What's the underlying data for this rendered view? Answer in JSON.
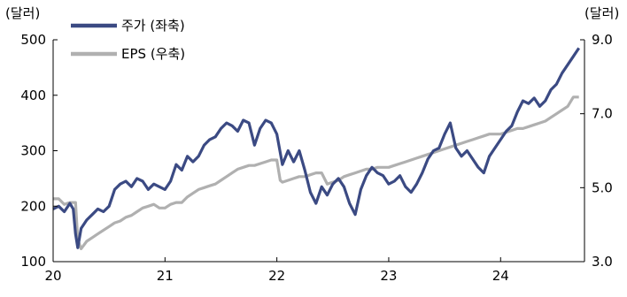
{
  "chart_data": {
    "type": "line",
    "left_unit": "(달러)",
    "right_unit": "(달러)",
    "x_ticks": [
      "20",
      "21",
      "22",
      "23",
      "24"
    ],
    "x_tick_years": [
      2020,
      2021,
      2022,
      2023,
      2024
    ],
    "xlim": [
      2020,
      2024.75
    ],
    "y_left": {
      "ticks": [
        "100",
        "200",
        "300",
        "400",
        "500"
      ],
      "tick_values": [
        100,
        200,
        300,
        400,
        500
      ],
      "lim": [
        100,
        500
      ]
    },
    "y_right": {
      "ticks": [
        "3.0",
        "5.0",
        "7.0",
        "9.0"
      ],
      "tick_values": [
        3.0,
        5.0,
        7.0,
        9.0
      ],
      "lim": [
        3.0,
        9.0
      ]
    },
    "legend_position": "top-left",
    "series": [
      {
        "name": "주가 (좌축)",
        "axis": "left",
        "color": "#3b4a83",
        "x": [
          2020.0,
          2020.05,
          2020.1,
          2020.15,
          2020.18,
          2020.2,
          2020.22,
          2020.25,
          2020.3,
          2020.35,
          2020.4,
          2020.45,
          2020.5,
          2020.55,
          2020.6,
          2020.65,
          2020.7,
          2020.75,
          2020.8,
          2020.85,
          2020.9,
          2020.95,
          2021.0,
          2021.05,
          2021.1,
          2021.15,
          2021.2,
          2021.25,
          2021.3,
          2021.35,
          2021.4,
          2021.45,
          2021.5,
          2021.55,
          2021.6,
          2021.65,
          2021.7,
          2021.75,
          2021.8,
          2021.85,
          2021.9,
          2021.95,
          2022.0,
          2022.05,
          2022.1,
          2022.15,
          2022.2,
          2022.25,
          2022.3,
          2022.35,
          2022.4,
          2022.45,
          2022.5,
          2022.55,
          2022.6,
          2022.65,
          2022.7,
          2022.75,
          2022.8,
          2022.85,
          2022.9,
          2022.95,
          2023.0,
          2023.05,
          2023.1,
          2023.15,
          2023.2,
          2023.25,
          2023.3,
          2023.35,
          2023.4,
          2023.45,
          2023.5,
          2023.55,
          2023.6,
          2023.65,
          2023.7,
          2023.75,
          2023.8,
          2023.85,
          2023.9,
          2023.95,
          2024.0,
          2024.05,
          2024.1,
          2024.15,
          2024.2,
          2024.25,
          2024.3,
          2024.35,
          2024.4,
          2024.45,
          2024.5,
          2024.55,
          2024.6,
          2024.65,
          2024.7
        ],
        "values": [
          195,
          200,
          190,
          205,
          195,
          150,
          125,
          160,
          175,
          185,
          195,
          190,
          200,
          230,
          240,
          245,
          235,
          250,
          245,
          230,
          240,
          235,
          230,
          245,
          275,
          265,
          290,
          280,
          290,
          310,
          320,
          325,
          340,
          350,
          345,
          335,
          355,
          350,
          310,
          340,
          355,
          350,
          330,
          275,
          300,
          280,
          300,
          265,
          225,
          205,
          235,
          220,
          240,
          250,
          235,
          205,
          185,
          230,
          255,
          270,
          260,
          255,
          240,
          245,
          255,
          235,
          225,
          240,
          260,
          285,
          300,
          305,
          330,
          350,
          305,
          290,
          300,
          285,
          270,
          260,
          290,
          305,
          320,
          335,
          345,
          370,
          390,
          385,
          395,
          380,
          390,
          410,
          420,
          440,
          455,
          470,
          485
        ]
      },
      {
        "name": "EPS (우축)",
        "axis": "right",
        "color": "#b0b0b0",
        "x": [
          2020.0,
          2020.05,
          2020.1,
          2020.15,
          2020.2,
          2020.22,
          2020.25,
          2020.3,
          2020.35,
          2020.4,
          2020.45,
          2020.5,
          2020.55,
          2020.6,
          2020.65,
          2020.7,
          2020.75,
          2020.8,
          2020.85,
          2020.9,
          2020.95,
          2021.0,
          2021.05,
          2021.1,
          2021.15,
          2021.2,
          2021.25,
          2021.3,
          2021.35,
          2021.4,
          2021.45,
          2021.5,
          2021.55,
          2021.6,
          2021.65,
          2021.7,
          2021.75,
          2021.8,
          2021.85,
          2021.9,
          2021.95,
          2022.0,
          2022.03,
          2022.05,
          2022.1,
          2022.15,
          2022.2,
          2022.25,
          2022.3,
          2022.35,
          2022.4,
          2022.45,
          2022.5,
          2022.55,
          2022.6,
          2022.65,
          2022.7,
          2022.75,
          2022.8,
          2022.85,
          2022.9,
          2022.95,
          2023.0,
          2023.05,
          2023.1,
          2023.15,
          2023.2,
          2023.25,
          2023.3,
          2023.35,
          2023.4,
          2023.45,
          2023.5,
          2023.55,
          2023.6,
          2023.65,
          2023.7,
          2023.75,
          2023.8,
          2023.85,
          2023.9,
          2023.95,
          2024.0,
          2024.05,
          2024.1,
          2024.15,
          2024.2,
          2024.25,
          2024.3,
          2024.35,
          2024.4,
          2024.45,
          2024.5,
          2024.55,
          2024.6,
          2024.65,
          2024.7
        ],
        "values": [
          4.7,
          4.7,
          4.55,
          4.6,
          4.6,
          3.6,
          3.35,
          3.55,
          3.65,
          3.75,
          3.85,
          3.95,
          4.05,
          4.1,
          4.2,
          4.25,
          4.35,
          4.45,
          4.5,
          4.55,
          4.45,
          4.45,
          4.55,
          4.6,
          4.6,
          4.75,
          4.85,
          4.95,
          5.0,
          5.05,
          5.1,
          5.2,
          5.3,
          5.4,
          5.5,
          5.55,
          5.6,
          5.6,
          5.65,
          5.7,
          5.75,
          5.75,
          5.2,
          5.15,
          5.2,
          5.25,
          5.3,
          5.3,
          5.35,
          5.4,
          5.4,
          5.1,
          5.15,
          5.2,
          5.3,
          5.35,
          5.4,
          5.45,
          5.5,
          5.5,
          5.55,
          5.55,
          5.55,
          5.6,
          5.65,
          5.7,
          5.75,
          5.8,
          5.85,
          5.9,
          5.95,
          6.0,
          6.05,
          6.1,
          6.15,
          6.2,
          6.25,
          6.3,
          6.35,
          6.4,
          6.45,
          6.45,
          6.45,
          6.5,
          6.55,
          6.6,
          6.6,
          6.65,
          6.7,
          6.75,
          6.8,
          6.9,
          7.0,
          7.1,
          7.2,
          7.45,
          7.45
        ]
      }
    ]
  }
}
